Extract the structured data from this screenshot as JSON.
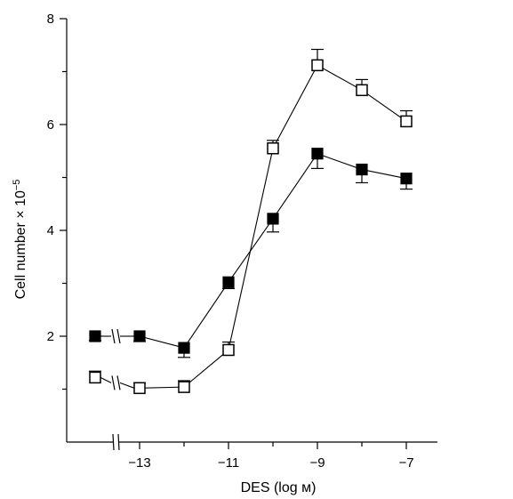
{
  "chart_data": {
    "type": "line",
    "xlabel": "DES (log м)",
    "ylabel": "Cell number × 10",
    "ylabel_exp": "−5",
    "xlim": [
      -14.5,
      -6.3
    ],
    "ylim": [
      0,
      8
    ],
    "x_ticks": [
      -13,
      -11,
      -9,
      -7
    ],
    "x_tick_labels": [
      "−13",
      "−11",
      "−9",
      "−7"
    ],
    "x_minor_ticks": [
      -12,
      -10,
      -8
    ],
    "y_ticks": [
      2,
      4,
      6,
      8
    ],
    "y_tick_labels": [
      "2",
      "4",
      "6",
      "8"
    ],
    "y_minor_ticks": [
      1,
      3,
      5,
      7
    ],
    "axis_break_x": -13.5,
    "control_x": -14,
    "series": [
      {
        "marker": "filled-square",
        "points": [
          {
            "x": -14,
            "y": 2.0,
            "err": 0.08
          },
          {
            "x": -13,
            "y": 2.0,
            "err": 0.1
          },
          {
            "x": -12,
            "y": 1.78,
            "err": 0.18
          },
          {
            "x": -11,
            "y": 3.02,
            "err": 0.12
          },
          {
            "x": -10,
            "y": 4.22,
            "err": 0.25
          },
          {
            "x": -9,
            "y": 5.45,
            "err": 0.28
          },
          {
            "x": -8,
            "y": 5.15,
            "err": 0.25
          },
          {
            "x": -7,
            "y": 4.98,
            "err": 0.2
          }
        ]
      },
      {
        "marker": "open-square",
        "points": [
          {
            "x": -14,
            "y": 1.22,
            "err": 0.12
          },
          {
            "x": -13,
            "y": 1.02,
            "err": 0.1
          },
          {
            "x": -12,
            "y": 1.04,
            "err": 0.12
          },
          {
            "x": -11,
            "y": 1.74,
            "err": 0.15
          },
          {
            "x": -10,
            "y": 5.55,
            "err": 0.15
          },
          {
            "x": -9,
            "y": 7.12,
            "err": 0.3
          },
          {
            "x": -8,
            "y": 6.65,
            "err": 0.2
          },
          {
            "x": -7,
            "y": 6.06,
            "err": 0.2
          }
        ]
      }
    ]
  }
}
